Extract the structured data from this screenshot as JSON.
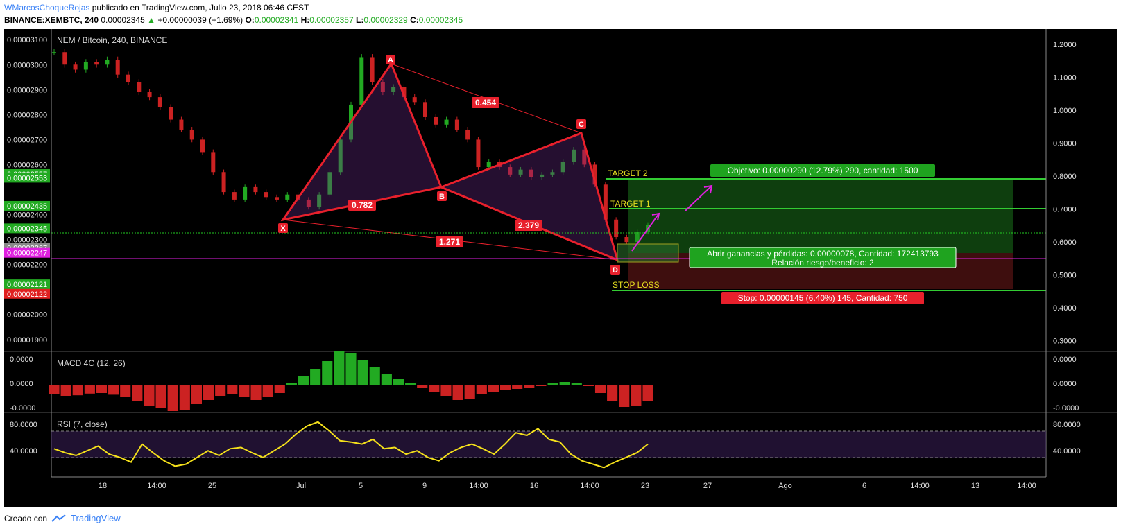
{
  "header": {
    "author": "WMarcosChoqueRojas",
    "published": "publicado en TradingView.com, Julio 23, 2018 06:46 CEST",
    "symbol": "BINANCE:XEMBTC, 240",
    "last": "0.00002345",
    "change": "+0.00000039 (+1.69%)",
    "o_label": "O:",
    "o": "0.00002341",
    "h_label": "H:",
    "h": "0.00002357",
    "l_label": "L:",
    "l": "0.00002329",
    "c_label": "C:",
    "c": "0.00002345"
  },
  "footer": {
    "created": "Creado con",
    "brand": "TradingView"
  },
  "colors": {
    "up": "#22aa22",
    "down": "#cc2222",
    "pattern": "#e8202c",
    "target": "#33cc33",
    "rsi": "#f5e11b",
    "magenta": "#e020e0"
  },
  "chart_data": [
    {
      "type": "candlestick",
      "title": "NEM / Bitcoin, 240, BINANCE",
      "x_ticks": [
        "18",
        "14:00",
        "25",
        "Jul",
        "5",
        "9",
        "14:00",
        "16",
        "14:00",
        "23",
        "27",
        "Ago",
        "6",
        "14:00",
        "13",
        "14:00"
      ],
      "y_left_ticks": [
        "0.00003100",
        "0.00003000",
        "0.00002900",
        "0.00002800",
        "0.00002700",
        "0.00002600",
        "0.00002400",
        "0.00002300",
        "0.00002200",
        "0.00002000",
        "0.00001900"
      ],
      "y_left_range": [
        1.88e-05,
        3.12e-05
      ],
      "y_right_ticks": [
        "1.2000",
        "1.1000",
        "1.0000",
        "0.9000",
        "0.8000",
        "0.7000",
        "0.6000",
        "0.5000",
        "0.4000",
        "0.3000"
      ],
      "price_tags": [
        {
          "label": "0.00002557",
          "kind": "green"
        },
        {
          "label": "0.00002553",
          "kind": "green"
        },
        {
          "label": "0.00002435",
          "kind": "green"
        },
        {
          "label": "0.00002345",
          "kind": "green"
        },
        {
          "label": "0.00002267",
          "kind": "gray"
        },
        {
          "label": "0.00002247",
          "kind": "magenta"
        },
        {
          "label": "0.00002121",
          "kind": "green"
        },
        {
          "label": "0.00002122",
          "kind": "red"
        }
      ],
      "candles_close": [
        3.05e-05,
        3e-05,
        2.98e-05,
        3.01e-05,
        3e-05,
        3.02e-05,
        2.96e-05,
        2.93e-05,
        2.89e-05,
        2.87e-05,
        2.83e-05,
        2.78e-05,
        2.74e-05,
        2.7e-05,
        2.65e-05,
        2.57e-05,
        2.49e-05,
        2.46e-05,
        2.51e-05,
        2.49e-05,
        2.47e-05,
        2.46e-05,
        2.48e-05,
        2.46e-05,
        2.43e-05,
        2.48e-05,
        2.57e-05,
        2.7e-05,
        2.84e-05,
        3.03e-05,
        2.93e-05,
        2.89e-05,
        2.91e-05,
        2.87e-05,
        2.85e-05,
        2.79e-05,
        2.76e-05,
        2.78e-05,
        2.74e-05,
        2.7e-05,
        2.59e-05,
        2.61e-05,
        2.59e-05,
        2.56e-05,
        2.58e-05,
        2.55e-05,
        2.56e-05,
        2.57e-05,
        2.61e-05,
        2.66e-05,
        2.6e-05,
        2.52e-05,
        2.38e-05,
        2.31e-05,
        2.29e-05,
        2.33e-05,
        2.36e-05
      ],
      "harmonic_pattern": {
        "points": {
          "X": 2.38e-05,
          "A": 2.93e-05,
          "B": 2.53e-05,
          "C": 2.75e-05,
          "D": 2.28e-05
        },
        "ratios": {
          "xb": "0.782",
          "ac": "0.454",
          "bd": "2.379",
          "xd": "1.271"
        }
      },
      "target2_label": "TARGET 2",
      "target1_label": "TARGET 1",
      "stoploss_label": "STOP LOSS",
      "objective_label": "Objetivo: 0.00000290 (12.79%) 290, cantidad: 1500",
      "open_pl_label": "Abrir ganancias y pérdidas: 0.00000078, Cantidad: 172413793",
      "rr_label": "Relación riesgo/beneficio: 2",
      "stop_label": "Stop: 0.00000145 (6.40%) 145, Cantidad: 750"
    },
    {
      "type": "bar",
      "title": "MACD 4C (12, 26)",
      "y_ticks": [
        "0.0000",
        "0.0000",
        "-0.0000"
      ],
      "values": [
        -0.35,
        -0.4,
        -0.38,
        -0.32,
        -0.3,
        -0.36,
        -0.45,
        -0.6,
        -0.75,
        -0.85,
        -0.95,
        -0.9,
        -0.7,
        -0.55,
        -0.4,
        -0.35,
        -0.45,
        -0.55,
        -0.45,
        -0.3,
        0.05,
        0.3,
        0.55,
        0.85,
        1.2,
        1.15,
        0.9,
        0.65,
        0.4,
        0.2,
        0.05,
        -0.1,
        -0.25,
        -0.4,
        -0.55,
        -0.5,
        -0.35,
        -0.25,
        -0.2,
        -0.15,
        -0.1,
        -0.05,
        0.05,
        0.1,
        0.05,
        -0.05,
        -0.3,
        -0.6,
        -0.8,
        -0.75,
        -0.6
      ]
    },
    {
      "type": "line",
      "title": "RSI (7, close)",
      "y_ticks": [
        "80.0000",
        "40.0000"
      ],
      "ylim": [
        10,
        95
      ],
      "levels": [
        70,
        30
      ],
      "values": [
        48,
        42,
        38,
        45,
        52,
        40,
        35,
        28,
        55,
        42,
        30,
        22,
        25,
        35,
        45,
        38,
        48,
        50,
        42,
        35,
        45,
        55,
        70,
        82,
        88,
        75,
        60,
        58,
        55,
        62,
        48,
        50,
        40,
        45,
        35,
        30,
        42,
        50,
        55,
        48,
        40,
        55,
        72,
        68,
        78,
        62,
        58,
        40,
        30,
        25,
        20,
        28,
        35,
        42,
        55
      ]
    }
  ]
}
